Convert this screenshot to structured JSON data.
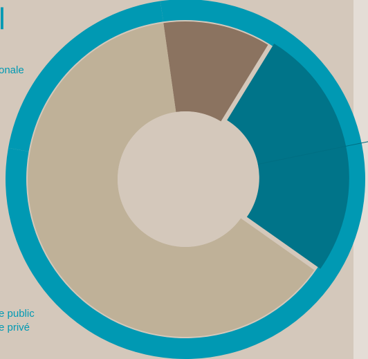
{
  "page": {
    "heading_fragment": "l",
    "top_label_fragment": "onale",
    "legend_fragments": [
      "e public",
      "e privé"
    ]
  },
  "colors": {
    "background": "#d4c8bb",
    "panel": "#e4ddd6",
    "accent": "#0099b3"
  },
  "chart_data": {
    "type": "pie",
    "variant": "donut",
    "outer_ring": {
      "segments": [
        {
          "value": 80,
          "color": "#0099b3"
        },
        {
          "value": 20,
          "color": "#0099b3"
        }
      ]
    },
    "inner_ring": {
      "segments": [
        {
          "value": 11,
          "color": "#8b7360"
        },
        {
          "value": 26,
          "color": "#007489",
          "exploded": true
        },
        {
          "value": 63,
          "color": "#bfb198"
        }
      ]
    }
  }
}
